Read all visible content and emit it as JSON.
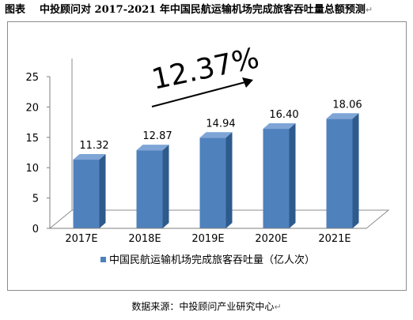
{
  "figure_label": "图表",
  "figure_title": "中投顾问对 2017-2021 年中国民航运输机场完成旅客吞吐量总额预测",
  "paragraph_mark": "↵",
  "source_text": "数据来源：中投顾问产业研究中心",
  "chart_data": {
    "type": "bar",
    "categories": [
      "2017E",
      "2018E",
      "2019E",
      "2020E",
      "2021E"
    ],
    "series": [
      {
        "name": "中国民航运输机场完成旅客吞吐量（亿人次）",
        "values": [
          11.32,
          12.87,
          14.94,
          16.4,
          18.06
        ]
      }
    ],
    "value_labels": [
      "11.32",
      "12.87",
      "14.94",
      "16.40",
      "18.06"
    ],
    "yticks": [
      "0",
      "5",
      "10",
      "15",
      "20",
      "25"
    ],
    "ylim": [
      0,
      25
    ],
    "bar_color": "#4f81bd",
    "annotation": "12.37%",
    "legend_position": "bottom",
    "grid": false,
    "title": "",
    "xlabel": "",
    "ylabel": ""
  }
}
